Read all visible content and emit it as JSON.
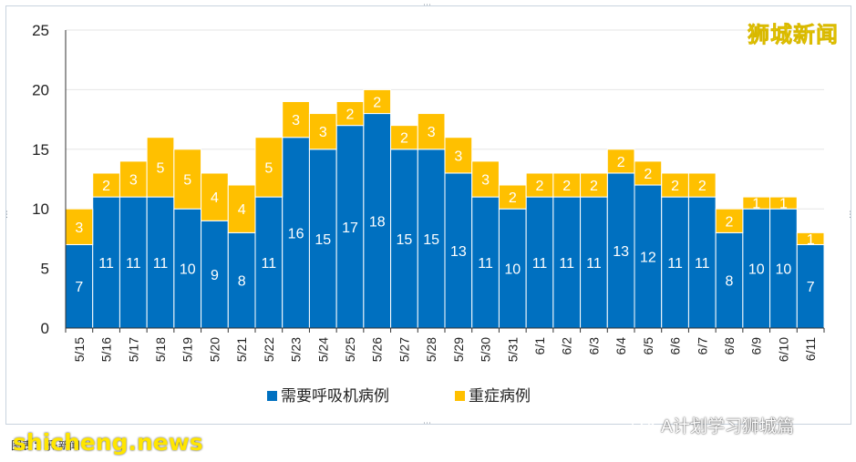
{
  "chart_data": {
    "type": "bar",
    "stacked": true,
    "categories": [
      "5/15",
      "5/16",
      "5/17",
      "5/18",
      "5/19",
      "5/20",
      "5/21",
      "5/22",
      "5/23",
      "5/24",
      "5/25",
      "5/26",
      "5/27",
      "5/28",
      "5/29",
      "5/30",
      "5/31",
      "6/1",
      "6/2",
      "6/3",
      "6/4",
      "6/5",
      "6/6",
      "6/7",
      "6/8",
      "6/9",
      "6/10",
      "6/11"
    ],
    "series": [
      {
        "name": "需要呼吸机病例",
        "color": "#0070c0",
        "values": [
          7,
          11,
          11,
          11,
          10,
          9,
          8,
          11,
          16,
          15,
          17,
          18,
          15,
          15,
          13,
          11,
          10,
          11,
          11,
          11,
          13,
          12,
          11,
          11,
          8,
          10,
          10,
          7
        ]
      },
      {
        "name": "重症病例",
        "color": "#ffc000",
        "values": [
          3,
          2,
          3,
          5,
          5,
          4,
          4,
          5,
          3,
          3,
          2,
          2,
          2,
          3,
          3,
          3,
          2,
          2,
          2,
          2,
          2,
          2,
          2,
          2,
          2,
          1,
          1,
          1
        ]
      }
    ],
    "title": "",
    "xlabel": "",
    "ylabel": "",
    "ylim": [
      0,
      25
    ],
    "yticks": [
      0,
      5,
      10,
      15,
      20,
      25
    ],
    "grid": true,
    "legend": "bottom-center"
  },
  "watermark": "狮城新闻",
  "wechat_label": "A计划学习狮城篇",
  "footer_label": "图表：乐·新闻",
  "site_watermark": "shicheng.news"
}
